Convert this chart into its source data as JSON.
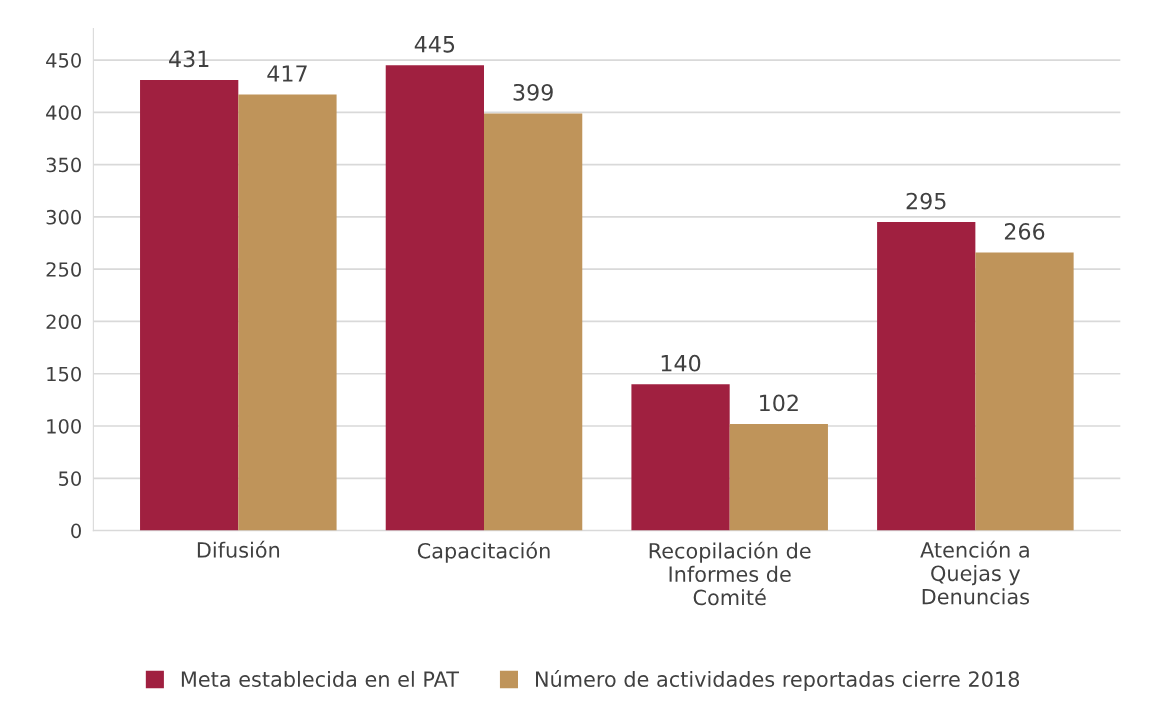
{
  "chart_data": {
    "type": "bar",
    "categories": [
      "Difusión",
      "Capacitación",
      "Recopilación de Informes de Comité",
      "Atención a Quejas y Denuncias"
    ],
    "series": [
      {
        "name": "Meta establecida en el PAT",
        "color": "#a02040",
        "values": [
          431,
          445,
          140,
          295
        ]
      },
      {
        "name": "Número de actividades reportadas cierre 2018",
        "color": "#bf945a",
        "values": [
          417,
          399,
          102,
          266
        ]
      }
    ],
    "ylim": [
      0,
      480
    ],
    "yticks": [
      0,
      50,
      100,
      150,
      200,
      250,
      300,
      350,
      400,
      450
    ],
    "grid": "y",
    "legend": "bottom",
    "data_labels": true
  }
}
